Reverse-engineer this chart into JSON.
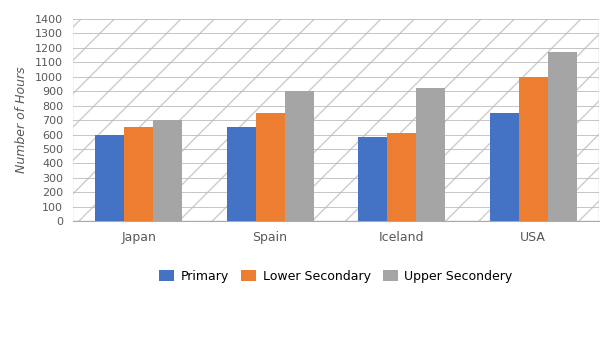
{
  "categories": [
    "Japan",
    "Spain",
    "Iceland",
    "USA"
  ],
  "series": [
    {
      "label": "Primary",
      "color": "#4472C4",
      "values": [
        600,
        650,
        580,
        750
      ]
    },
    {
      "label": "Lower Secondary",
      "color": "#ED7D31",
      "values": [
        650,
        750,
        608,
        1000
      ]
    },
    {
      "label": "Upper Secondery",
      "color": "#A5A5A5",
      "values": [
        700,
        900,
        920,
        1175
      ]
    }
  ],
  "ylabel": "Number of Hours",
  "ylim": [
    0,
    1400
  ],
  "yticks": [
    0,
    100,
    200,
    300,
    400,
    500,
    600,
    700,
    800,
    900,
    1000,
    1100,
    1200,
    1300,
    1400
  ],
  "background_color": "#FFFFFF",
  "plot_bg_color": "#FFFFFF",
  "hatch_color": "#D0D0D0",
  "bar_width": 0.22,
  "legend_ncol": 3
}
